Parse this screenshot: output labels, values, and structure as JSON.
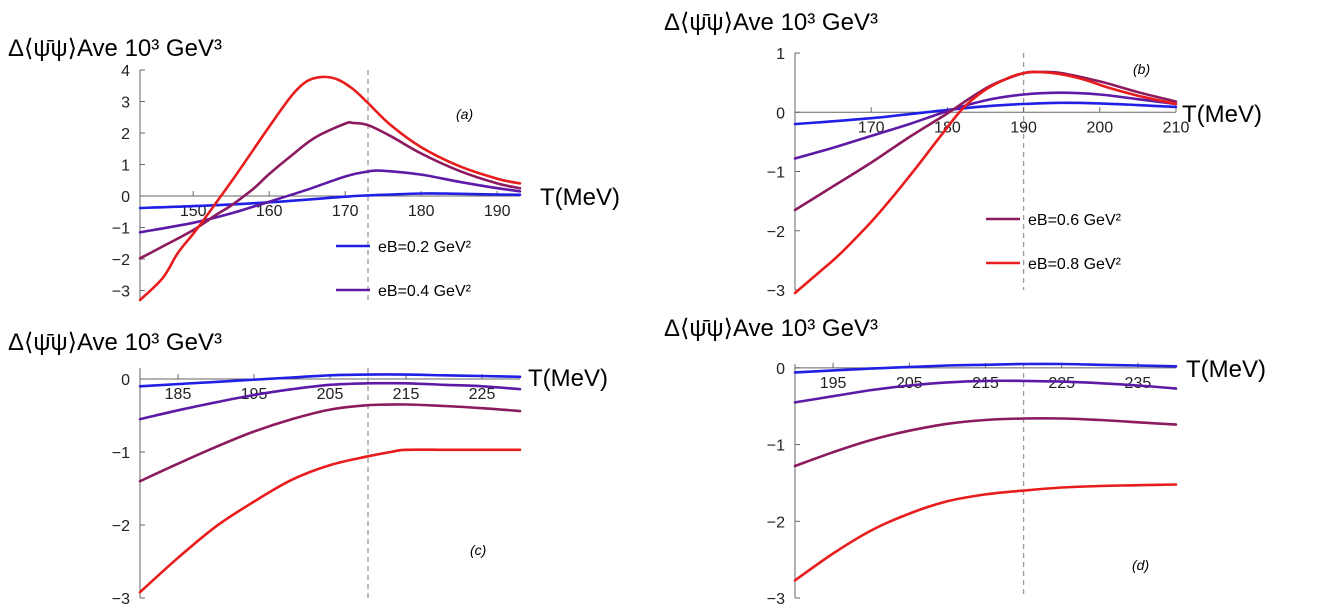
{
  "figure": {
    "ylabel": "Δ⟨ψ̄ψ⟩Ave 10³ GeV³",
    "xlabel": "T(MeV)"
  },
  "colors": {
    "eB=0.2": "#1f1fe6",
    "eB=0.4": "#5e1aa6",
    "eB=0.6": "#8c1a5e",
    "eB=0.8": "#e81c1c",
    "vline": "#999999",
    "axis": "#666666"
  },
  "legend": [
    {
      "label": "eB=0.2 GeV²",
      "panel": "a"
    },
    {
      "label": "eB=0.4 GeV²",
      "panel": "a"
    },
    {
      "label": "eB=0.6 GeV²",
      "panel": "b"
    },
    {
      "label": "eB=0.8 GeV²",
      "panel": "b"
    }
  ],
  "chart_data": [
    {
      "panel": "a",
      "panel_label": "(a)",
      "type": "line",
      "xlim": [
        143,
        193
      ],
      "ylim": [
        -3.3,
        4
      ],
      "xticks": [
        150,
        160,
        170,
        180,
        190
      ],
      "yticks": [
        4,
        3,
        2,
        1,
        0,
        -1,
        -2,
        -3
      ],
      "vline": 173,
      "series": [
        {
          "name": "eB=0.2 GeV²",
          "x": [
            143,
            150,
            160,
            170,
            173,
            180,
            185,
            190,
            193
          ],
          "values": [
            -0.38,
            -0.32,
            -0.2,
            -0.02,
            0.02,
            0.08,
            0.07,
            0.05,
            0.04
          ]
        },
        {
          "name": "eB=0.4 GeV²",
          "x": [
            143,
            150,
            155,
            160,
            165,
            170,
            173,
            175,
            180,
            185,
            190,
            193
          ],
          "values": [
            -1.15,
            -0.85,
            -0.55,
            -0.18,
            0.2,
            0.62,
            0.78,
            0.8,
            0.68,
            0.45,
            0.25,
            0.15
          ]
        },
        {
          "name": "eB=0.6 GeV²",
          "x": [
            143,
            146,
            150,
            153,
            155,
            158,
            160,
            163,
            166,
            170,
            171,
            173,
            176,
            180,
            185,
            190,
            193
          ],
          "values": [
            -1.98,
            -1.6,
            -1.08,
            -0.6,
            -0.3,
            0.25,
            0.7,
            1.3,
            1.85,
            2.3,
            2.32,
            2.25,
            1.9,
            1.35,
            0.8,
            0.4,
            0.25
          ]
        },
        {
          "name": "eB=0.8 GeV²",
          "x": [
            143,
            146,
            148,
            150,
            152,
            155,
            158,
            160,
            163,
            165,
            167,
            169,
            171,
            173,
            176,
            180,
            185,
            190,
            193
          ],
          "values": [
            -3.3,
            -2.6,
            -1.8,
            -1.2,
            -0.55,
            0.45,
            1.5,
            2.2,
            3.2,
            3.65,
            3.78,
            3.7,
            3.4,
            2.95,
            2.25,
            1.55,
            0.95,
            0.55,
            0.4
          ]
        }
      ]
    },
    {
      "panel": "b",
      "panel_label": "(b)",
      "type": "line",
      "xlim": [
        160,
        210
      ],
      "ylim": [
        -3,
        1
      ],
      "xticks": [
        170,
        180,
        190,
        200,
        210
      ],
      "yticks": [
        1,
        0,
        -1,
        -2,
        -3
      ],
      "vline": 190,
      "series": [
        {
          "name": "eB=0.2 GeV²",
          "x": [
            160,
            170,
            180,
            185,
            190,
            195,
            200,
            205,
            210
          ],
          "values": [
            -0.2,
            -0.1,
            0.04,
            0.1,
            0.14,
            0.16,
            0.15,
            0.12,
            0.09
          ]
        },
        {
          "name": "eB=0.4 GeV²",
          "x": [
            160,
            165,
            170,
            175,
            180,
            185,
            190,
            195,
            200,
            205,
            210
          ],
          "values": [
            -0.78,
            -0.6,
            -0.4,
            -0.2,
            0.02,
            0.2,
            0.3,
            0.33,
            0.3,
            0.22,
            0.14
          ]
        },
        {
          "name": "eB=0.6 GeV²",
          "x": [
            160,
            165,
            170,
            175,
            180,
            183,
            186,
            190,
            192,
            195,
            200,
            205,
            210
          ],
          "values": [
            -1.65,
            -1.25,
            -0.85,
            -0.42,
            -0.02,
            0.24,
            0.47,
            0.66,
            0.68,
            0.66,
            0.52,
            0.34,
            0.18
          ]
        },
        {
          "name": "eB=0.8 GeV²",
          "x": [
            160,
            163,
            166,
            170,
            173,
            176,
            179,
            182,
            185,
            188,
            190,
            192,
            195,
            198,
            201,
            205,
            210
          ],
          "values": [
            -3.05,
            -2.72,
            -2.38,
            -1.85,
            -1.4,
            -0.92,
            -0.42,
            0.06,
            0.38,
            0.58,
            0.66,
            0.68,
            0.64,
            0.55,
            0.42,
            0.28,
            0.14
          ]
        }
      ]
    },
    {
      "panel": "c",
      "panel_label": "(c)",
      "type": "line",
      "xlim": [
        180,
        230
      ],
      "ylim": [
        -3,
        0.15
      ],
      "xticks": [
        185,
        195,
        205,
        215,
        225
      ],
      "yticks": [
        0,
        -1,
        -2,
        -3
      ],
      "vline": 210,
      "series": [
        {
          "name": "eB=0.2 GeV²",
          "x": [
            180,
            190,
            200,
            205,
            210,
            215,
            220,
            225,
            230
          ],
          "values": [
            -0.1,
            -0.04,
            0.02,
            0.05,
            0.06,
            0.06,
            0.05,
            0.04,
            0.03
          ]
        },
        {
          "name": "eB=0.4 GeV²",
          "x": [
            180,
            185,
            190,
            195,
            200,
            205,
            210,
            215,
            220,
            225,
            230
          ],
          "values": [
            -0.55,
            -0.43,
            -0.32,
            -0.22,
            -0.14,
            -0.08,
            -0.06,
            -0.06,
            -0.08,
            -0.1,
            -0.14
          ]
        },
        {
          "name": "eB=0.6 GeV²",
          "x": [
            180,
            185,
            190,
            195,
            200,
            205,
            210,
            215,
            220,
            225,
            230
          ],
          "values": [
            -1.4,
            -1.16,
            -0.93,
            -0.72,
            -0.55,
            -0.42,
            -0.36,
            -0.35,
            -0.37,
            -0.4,
            -0.44
          ]
        },
        {
          "name": "eB=0.8 GeV²",
          "x": [
            180,
            185,
            190,
            195,
            200,
            205,
            210,
            213,
            215,
            220,
            225,
            230
          ],
          "values": [
            -2.92,
            -2.45,
            -2.02,
            -1.68,
            -1.38,
            -1.18,
            -1.06,
            -1.0,
            -0.97,
            -0.97,
            -0.97,
            -0.97
          ]
        }
      ]
    },
    {
      "panel": "d",
      "panel_label": "(d)",
      "type": "line",
      "xlim": [
        190,
        240
      ],
      "ylim": [
        -3,
        0.05
      ],
      "xticks": [
        195,
        205,
        215,
        225,
        235
      ],
      "yticks": [
        0,
        -1,
        -2,
        -3
      ],
      "vline": 220,
      "series": [
        {
          "name": "eB=0.2 GeV²",
          "x": [
            190,
            200,
            210,
            215,
            220,
            225,
            230,
            235,
            240
          ],
          "values": [
            -0.06,
            -0.01,
            0.03,
            0.04,
            0.05,
            0.05,
            0.04,
            0.03,
            0.02
          ]
        },
        {
          "name": "eB=0.4 GeV²",
          "x": [
            190,
            195,
            200,
            205,
            210,
            215,
            220,
            225,
            230,
            235,
            240
          ],
          "values": [
            -0.45,
            -0.37,
            -0.29,
            -0.23,
            -0.19,
            -0.17,
            -0.17,
            -0.18,
            -0.2,
            -0.23,
            -0.27
          ]
        },
        {
          "name": "eB=0.6 GeV²",
          "x": [
            190,
            195,
            200,
            205,
            210,
            215,
            220,
            225,
            230,
            235,
            240
          ],
          "values": [
            -1.28,
            -1.1,
            -0.94,
            -0.82,
            -0.73,
            -0.68,
            -0.66,
            -0.66,
            -0.68,
            -0.71,
            -0.74
          ]
        },
        {
          "name": "eB=0.8 GeV²",
          "x": [
            190,
            195,
            200,
            205,
            210,
            215,
            220,
            225,
            230,
            235,
            240
          ],
          "values": [
            -2.77,
            -2.42,
            -2.12,
            -1.9,
            -1.74,
            -1.65,
            -1.6,
            -1.56,
            -1.54,
            -1.53,
            -1.52
          ]
        }
      ]
    }
  ]
}
